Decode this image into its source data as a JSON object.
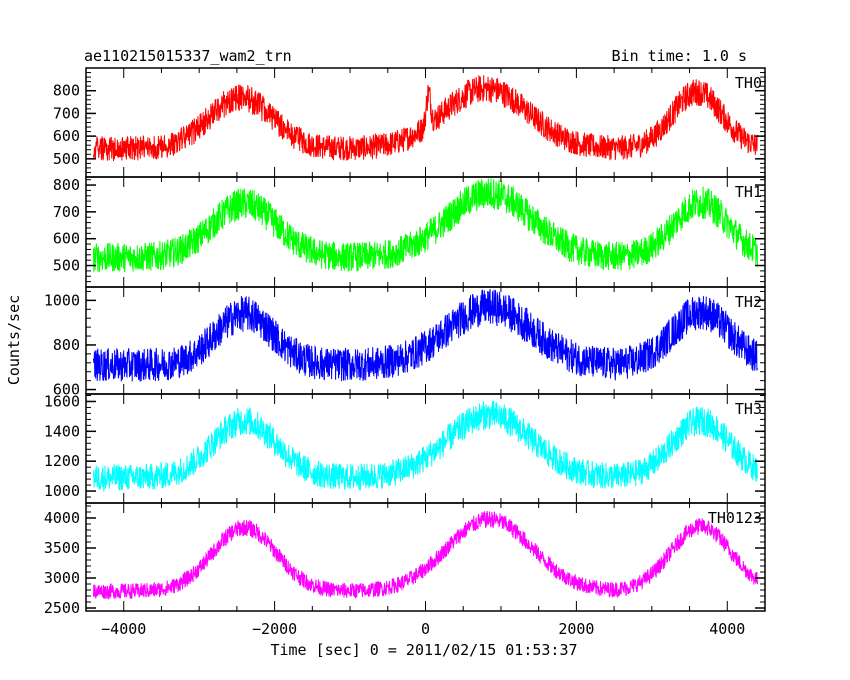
{
  "header": {
    "title": "ae110215015337_wam2_trn",
    "bin_time": "Bin time: 1.0 s"
  },
  "axes": {
    "ylabel": "Counts/sec",
    "xlabel": "Time [sec] 0 = 2011/02/15 01:53:37",
    "xlim": [
      -4500,
      4500
    ],
    "xticks": [
      -4000,
      -2000,
      0,
      2000,
      4000
    ],
    "xtick_labels": [
      "−4000",
      "−2000",
      "0",
      "2000",
      "4000"
    ]
  },
  "chart_data": {
    "type": "line",
    "title": "ae110215015337_wam2_trn",
    "xlabel": "Time [sec] 0 = 2011/02/15 01:53:37",
    "ylabel": "Counts/sec",
    "x_range": [
      -4400,
      4400
    ],
    "bin_time_s": 1.0,
    "panels": [
      {
        "name": "TH0",
        "color": "#ff0000",
        "ylim": [
          420,
          900
        ],
        "yticks": [
          500,
          600,
          700,
          800
        ],
        "baseline": 545,
        "noise": 55,
        "peaks": [
          {
            "center": -2450,
            "amplitude": 225,
            "width": 420
          },
          {
            "center": 800,
            "amplitude": 265,
            "width": 560
          },
          {
            "center": 3600,
            "amplitude": 250,
            "width": 330
          }
        ],
        "spikes": [
          {
            "center": 40,
            "amplitude": 140,
            "width": 30
          }
        ]
      },
      {
        "name": "TH1",
        "color": "#00ff00",
        "ylim": [
          420,
          830
        ],
        "yticks": [
          500,
          600,
          700,
          800
        ],
        "baseline": 530,
        "noise": 55,
        "peaks": [
          {
            "center": -2400,
            "amplitude": 200,
            "width": 430
          },
          {
            "center": 850,
            "amplitude": 240,
            "width": 560
          },
          {
            "center": 3650,
            "amplitude": 205,
            "width": 360
          }
        ]
      },
      {
        "name": "TH2",
        "color": "#0000ff",
        "ylim": [
          580,
          1060
        ],
        "yticks": [
          600,
          800,
          1000
        ],
        "baseline": 710,
        "noise": 75,
        "peaks": [
          {
            "center": -2400,
            "amplitude": 230,
            "width": 380
          },
          {
            "center": 850,
            "amplitude": 260,
            "width": 560
          },
          {
            "center": 3650,
            "amplitude": 240,
            "width": 380
          }
        ]
      },
      {
        "name": "TH3",
        "color": "#00ffff",
        "ylim": [
          920,
          1650
        ],
        "yticks": [
          1000,
          1200,
          1400,
          1600
        ],
        "baseline": 1090,
        "noise": 90,
        "peaks": [
          {
            "center": -2400,
            "amplitude": 380,
            "width": 420
          },
          {
            "center": 850,
            "amplitude": 420,
            "width": 560
          },
          {
            "center": 3650,
            "amplitude": 380,
            "width": 380
          }
        ]
      },
      {
        "name": "TH0123",
        "color": "#ff00ff",
        "ylim": [
          2450,
          4250
        ],
        "yticks": [
          2500,
          3000,
          3500,
          4000
        ],
        "baseline": 2780,
        "noise": 130,
        "peaks": [
          {
            "center": -2400,
            "amplitude": 1060,
            "width": 420
          },
          {
            "center": 850,
            "amplitude": 1200,
            "width": 560
          },
          {
            "center": 3650,
            "amplitude": 1080,
            "width": 400
          }
        ]
      }
    ]
  }
}
